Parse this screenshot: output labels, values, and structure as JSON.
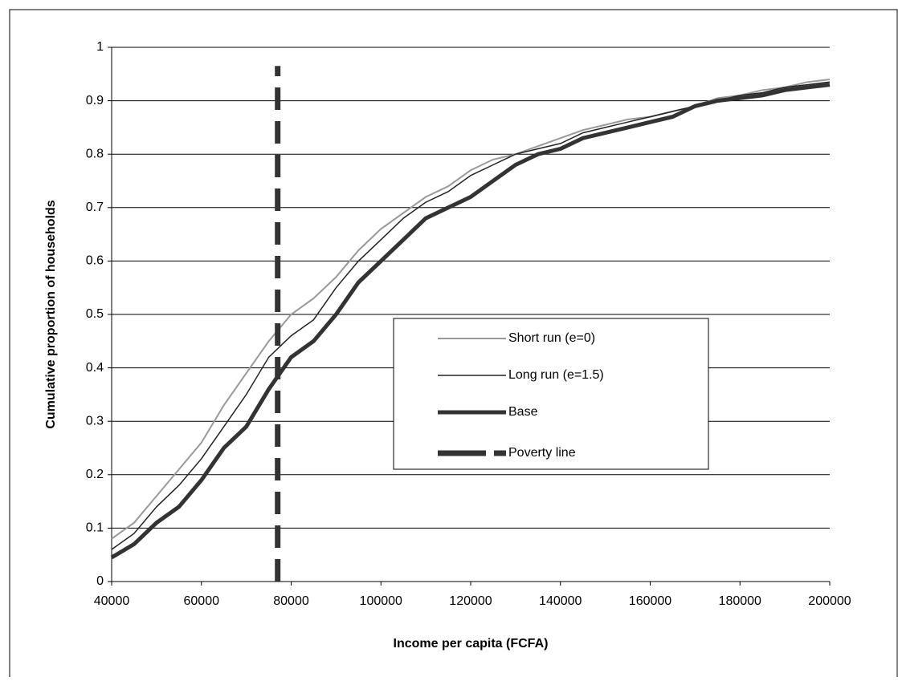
{
  "chart_data": {
    "type": "line",
    "xlabel": "Income per capita (FCFA)",
    "ylabel": "Cumulative proportion of households",
    "x": [
      40000,
      45000,
      50000,
      55000,
      60000,
      65000,
      70000,
      75000,
      80000,
      85000,
      90000,
      95000,
      100000,
      105000,
      110000,
      115000,
      120000,
      125000,
      130000,
      135000,
      140000,
      145000,
      150000,
      155000,
      160000,
      165000,
      170000,
      175000,
      180000,
      185000,
      190000,
      195000,
      200000
    ],
    "series": [
      {
        "name": "Short run (e=0)",
        "color": "#999999",
        "values": [
          0.08,
          0.11,
          0.16,
          0.21,
          0.26,
          0.33,
          0.39,
          0.45,
          0.5,
          0.53,
          0.57,
          0.62,
          0.66,
          0.69,
          0.72,
          0.74,
          0.77,
          0.79,
          0.8,
          0.815,
          0.83,
          0.845,
          0.855,
          0.865,
          0.87,
          0.88,
          0.89,
          0.905,
          0.91,
          0.92,
          0.925,
          0.935,
          0.94
        ]
      },
      {
        "name": "Long run (e=1.5)",
        "color": "#222222",
        "values": [
          0.06,
          0.09,
          0.14,
          0.18,
          0.23,
          0.29,
          0.35,
          0.42,
          0.46,
          0.49,
          0.55,
          0.6,
          0.64,
          0.68,
          0.71,
          0.73,
          0.76,
          0.78,
          0.8,
          0.81,
          0.82,
          0.84,
          0.85,
          0.86,
          0.87,
          0.88,
          0.89,
          0.9,
          0.91,
          0.915,
          0.925,
          0.93,
          0.935
        ]
      },
      {
        "name": "Base",
        "color": "#333333",
        "values": [
          0.045,
          0.07,
          0.11,
          0.14,
          0.19,
          0.25,
          0.29,
          0.36,
          0.42,
          0.45,
          0.5,
          0.56,
          0.6,
          0.64,
          0.68,
          0.7,
          0.72,
          0.75,
          0.78,
          0.8,
          0.81,
          0.83,
          0.84,
          0.85,
          0.86,
          0.87,
          0.89,
          0.9,
          0.905,
          0.91,
          0.92,
          0.925,
          0.93
        ]
      },
      {
        "name": "Poverty line",
        "color": "#333333",
        "dashed": true,
        "x": [
          77000,
          77000
        ],
        "values": [
          0,
          0.965
        ]
      }
    ],
    "xlim": [
      40000,
      200000
    ],
    "xticks": [
      40000,
      60000,
      80000,
      100000,
      120000,
      140000,
      160000,
      180000,
      200000
    ],
    "ylim": [
      0,
      1
    ],
    "yticks": [
      0,
      0.1,
      0.2,
      0.3,
      0.4,
      0.5,
      0.6,
      0.7,
      0.8,
      0.9,
      1
    ],
    "grid": true,
    "legend": "center-right"
  }
}
